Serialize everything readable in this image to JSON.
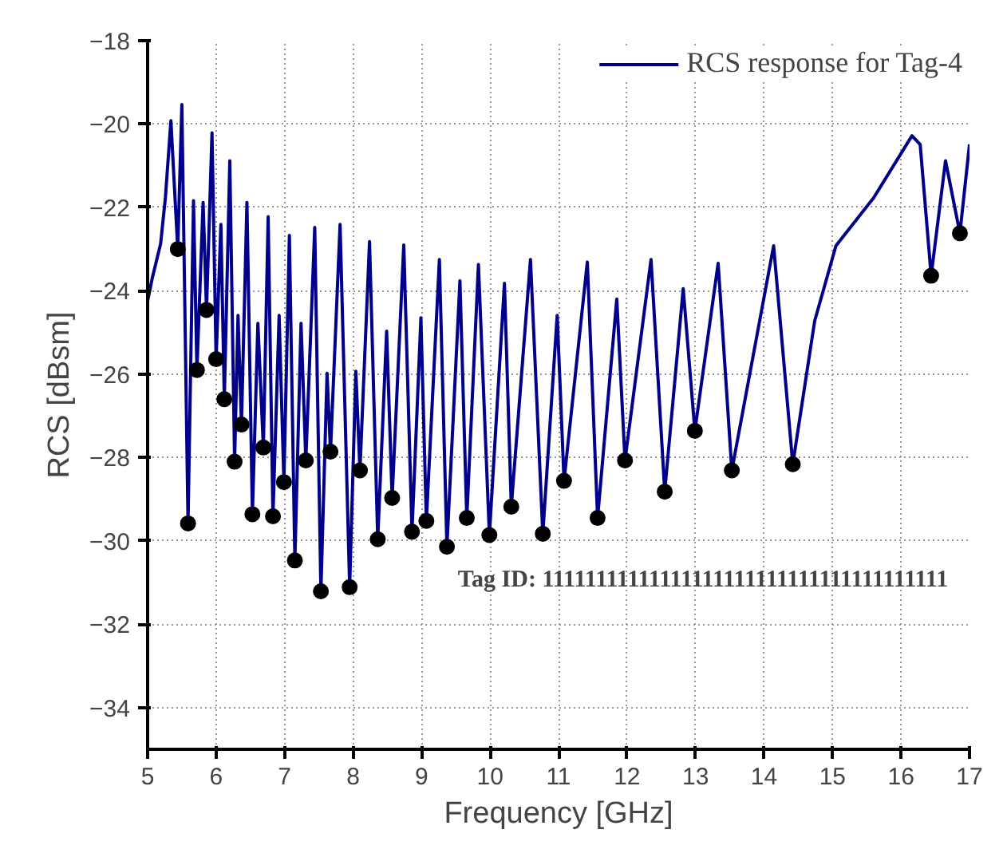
{
  "chart_data": {
    "type": "line",
    "xlabel": "Frequency [GHz]",
    "ylabel": "RCS [dBsm]",
    "xlim": [
      5,
      17
    ],
    "ylim": [
      -35,
      -18
    ],
    "xticks": [
      5,
      6,
      7,
      8,
      9,
      10,
      11,
      12,
      13,
      14,
      15,
      16,
      17
    ],
    "yticks": [
      -34,
      -32,
      -30,
      -28,
      -26,
      -24,
      -22,
      -20,
      -18
    ],
    "grid": true,
    "legend": "top right",
    "line_style": "solid",
    "annotations": [
      "Tag ID: 11111111111111111111111111111111111111"
    ],
    "series": [
      {
        "name": "RCS response for Tag-4",
        "color": "#00008b",
        "marker": "none",
        "x": [
          5.0,
          5.07,
          5.19,
          5.26,
          5.34,
          5.44,
          5.5,
          5.59,
          5.67,
          5.72,
          5.81,
          5.86,
          5.94,
          6.0,
          6.07,
          6.12,
          6.2,
          6.27,
          6.32,
          6.37,
          6.45,
          6.53,
          6.61,
          6.69,
          6.76,
          6.83,
          6.92,
          6.99,
          7.07,
          7.15,
          7.24,
          7.31,
          7.44,
          7.53,
          7.62,
          7.67,
          7.81,
          7.95,
          8.04,
          8.1,
          8.24,
          8.36,
          8.49,
          8.57,
          8.74,
          8.86,
          8.99,
          9.07,
          9.26,
          9.37,
          9.56,
          9.66,
          9.83,
          9.99,
          10.21,
          10.31,
          10.59,
          10.77,
          10.98,
          11.08,
          11.42,
          11.57,
          11.85,
          11.97,
          12.35,
          12.55,
          12.82,
          12.99,
          13.33,
          13.53,
          14.14,
          14.42,
          14.74,
          15.05,
          15.6,
          16.16,
          16.28,
          16.44,
          16.65,
          16.86,
          17.0
        ],
        "values": [
          -24.25,
          -23.68,
          -22.87,
          -21.76,
          -19.92,
          -23.0,
          -19.53,
          -29.58,
          -21.84,
          -25.9,
          -21.88,
          -24.46,
          -20.21,
          -25.64,
          -22.41,
          -26.6,
          -20.88,
          -28.1,
          -24.59,
          -27.21,
          -21.88,
          -29.36,
          -24.78,
          -27.76,
          -22.22,
          -29.41,
          -24.59,
          -28.59,
          -22.67,
          -30.47,
          -24.78,
          -28.07,
          -22.48,
          -31.21,
          -25.98,
          -27.86,
          -22.41,
          -31.11,
          -25.93,
          -28.31,
          -22.82,
          -29.96,
          -24.97,
          -28.97,
          -22.9,
          -29.78,
          -24.65,
          -29.52,
          -23.25,
          -30.14,
          -23.76,
          -29.45,
          -23.37,
          -29.86,
          -23.82,
          -29.18,
          -23.25,
          -29.83,
          -24.59,
          -28.56,
          -23.31,
          -29.45,
          -24.2,
          -28.07,
          -23.25,
          -28.82,
          -23.95,
          -27.36,
          -23.34,
          -28.31,
          -22.92,
          -28.16,
          -24.72,
          -22.92,
          -21.77,
          -20.28,
          -20.49,
          -23.64,
          -20.88,
          -22.62,
          -20.49
        ]
      },
      {
        "type": "scatter",
        "color": "#000000",
        "marker": "circle",
        "x": [
          5.44,
          5.59,
          5.72,
          5.86,
          6.0,
          6.12,
          6.27,
          6.37,
          6.53,
          6.69,
          6.83,
          6.99,
          7.15,
          7.31,
          7.53,
          7.67,
          7.95,
          8.1,
          8.36,
          8.57,
          8.86,
          9.07,
          9.37,
          9.66,
          9.99,
          10.31,
          10.77,
          11.08,
          11.57,
          11.97,
          12.55,
          12.99,
          13.53,
          14.42,
          16.44,
          16.86
        ],
        "values": [
          -23.0,
          -29.58,
          -25.9,
          -24.46,
          -25.64,
          -26.6,
          -28.1,
          -27.21,
          -29.36,
          -27.76,
          -29.41,
          -28.59,
          -30.47,
          -28.07,
          -31.21,
          -27.86,
          -31.11,
          -28.31,
          -29.96,
          -28.97,
          -29.78,
          -29.52,
          -30.14,
          -29.45,
          -29.86,
          -29.18,
          -29.83,
          -28.56,
          -29.45,
          -28.07,
          -28.82,
          -27.36,
          -28.31,
          -28.16,
          -23.64,
          -22.62
        ]
      }
    ]
  }
}
